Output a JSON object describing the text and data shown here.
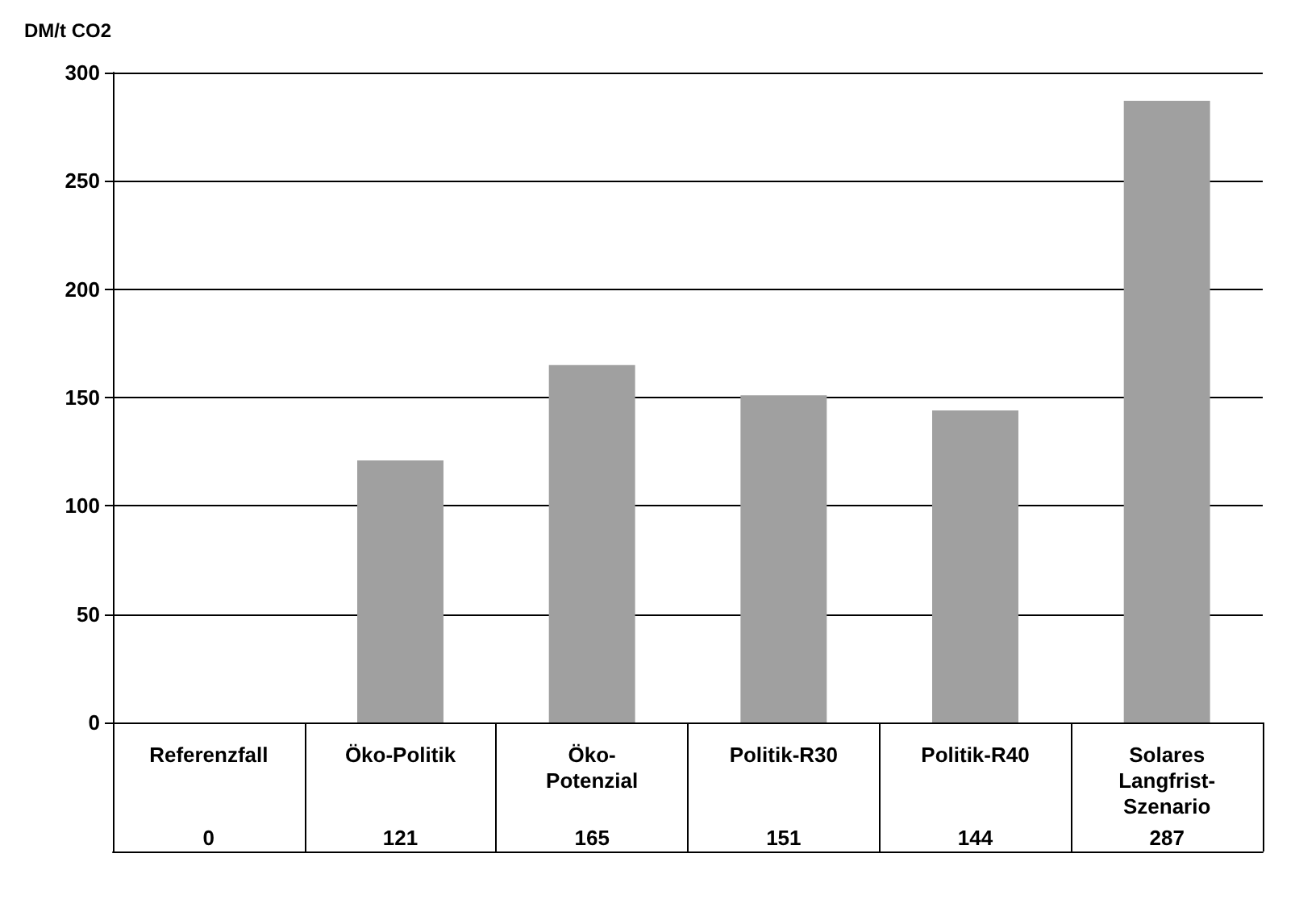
{
  "chart_data": {
    "type": "bar",
    "ylabel": "DM/t CO2",
    "categories": [
      "Referenzfall",
      "Öko-Politik",
      "Öko-Potenzial",
      "Politik-R30",
      "Politik-R40",
      "Solares Langfrist-Szenario"
    ],
    "values": [
      0,
      121,
      165,
      151,
      144,
      287
    ],
    "color": "#a0a0a0",
    "ylim": [
      0,
      300
    ],
    "yticks": [
      0,
      50,
      100,
      150,
      200,
      250,
      300
    ],
    "grid": "y",
    "data_labels": true
  }
}
